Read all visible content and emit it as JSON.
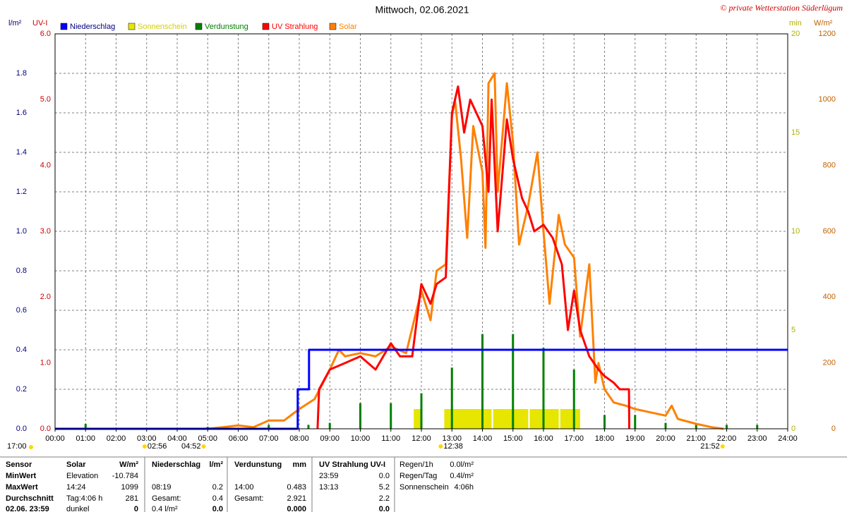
{
  "chart_data": {
    "type": "line",
    "title": "Mittwoch, 02.06.2021",
    "copyright": "© private Wetterstation Süderlügum",
    "grid": true,
    "xlim": [
      0,
      24
    ],
    "xticks": [
      {
        "value": 0,
        "label": "00:00"
      },
      {
        "value": 1,
        "label": "01:00"
      },
      {
        "value": 2,
        "label": "02:00"
      },
      {
        "value": 3,
        "label": "03:00"
      },
      {
        "value": 4,
        "label": "04:00"
      },
      {
        "value": 5,
        "label": "05:00"
      },
      {
        "value": 6,
        "label": "06:00"
      },
      {
        "value": 7,
        "label": "07:00"
      },
      {
        "value": 8,
        "label": "08:00"
      },
      {
        "value": 9,
        "label": "09:00"
      },
      {
        "value": 10,
        "label": "10:00"
      },
      {
        "value": 11,
        "label": "11:00"
      },
      {
        "value": 12,
        "label": "12:00"
      },
      {
        "value": 13,
        "label": "13:00"
      },
      {
        "value": 14,
        "label": "14:00"
      },
      {
        "value": 15,
        "label": "15:00"
      },
      {
        "value": 16,
        "label": "16:00"
      },
      {
        "value": 17,
        "label": "17:00"
      },
      {
        "value": 18,
        "label": "18:00"
      },
      {
        "value": 19,
        "label": "19:00"
      },
      {
        "value": 20,
        "label": "20:00"
      },
      {
        "value": 21,
        "label": "21:00"
      },
      {
        "value": 22,
        "label": "22:00"
      },
      {
        "value": 23,
        "label": "23:00"
      },
      {
        "value": 24,
        "label": "24:00"
      }
    ],
    "axes": [
      {
        "label": "l/m²",
        "color": "#000080",
        "lim": [
          0,
          2.0
        ],
        "ticks": [
          {
            "value": 0,
            "label": "0.0"
          },
          {
            "value": 0.2,
            "label": "0.2"
          },
          {
            "value": 0.4,
            "label": "0.4"
          },
          {
            "value": 0.6,
            "label": "0.6"
          },
          {
            "value": 0.8,
            "label": "0.8"
          },
          {
            "value": 1.0,
            "label": "1.0"
          },
          {
            "value": 1.2,
            "label": "1.2"
          },
          {
            "value": 1.4,
            "label": "1.4"
          },
          {
            "value": 1.6,
            "label": "1.6"
          },
          {
            "value": 1.8,
            "label": "1.8"
          }
        ]
      },
      {
        "label": "UV-I",
        "color": "#cc0000",
        "lim": [
          0,
          6.0
        ],
        "ticks": [
          {
            "value": 0,
            "label": "0.0"
          },
          {
            "value": 1,
            "label": "1.0"
          },
          {
            "value": 2,
            "label": "2.0"
          },
          {
            "value": 3,
            "label": "3.0"
          },
          {
            "value": 4,
            "label": "4.0"
          },
          {
            "value": 5,
            "label": "5.0"
          },
          {
            "value": 6,
            "label": "6.0"
          }
        ]
      },
      {
        "label": "min",
        "color": "#b0b000",
        "lim": [
          0,
          20
        ],
        "ticks": [
          0,
          5,
          10,
          15,
          20
        ]
      },
      {
        "label": "W/m²",
        "color": "#c06000",
        "lim": [
          0,
          1200
        ],
        "ticks": [
          0,
          200,
          400,
          600,
          800,
          1000,
          1200
        ]
      }
    ],
    "series": [
      {
        "name": "Niederschlag",
        "color": "#0000ff",
        "type": "step",
        "axis": 0,
        "x": [
          0,
          7.95,
          7.95,
          8.32,
          8.32,
          24
        ],
        "values": [
          0,
          0,
          0.2,
          0.2,
          0.4,
          0.4
        ]
      },
      {
        "name": "Sonnenschein",
        "color": "#e6e600",
        "type": "interval",
        "axis": 2,
        "x": [
          11.75,
          12.75,
          14.35,
          15.55,
          16.55
        ],
        "x_end": [
          12.0,
          14.3,
          15.5,
          16.5,
          17.2
        ],
        "values": [
          1,
          1,
          1,
          1,
          1
        ]
      },
      {
        "name": "Verdunstung",
        "color": "#008000",
        "type": "spike",
        "axis": 0,
        "x": [
          1,
          5,
          7,
          8.3,
          9,
          10,
          11,
          12,
          13,
          14,
          15,
          16,
          17,
          18,
          19,
          20,
          21,
          22,
          23
        ],
        "values": [
          0.025,
          0.01,
          0.02,
          0.02,
          0.03,
          0.13,
          0.13,
          0.18,
          0.31,
          0.48,
          0.48,
          0.41,
          0.3,
          0.07,
          0.07,
          0.03,
          0.02,
          0.02,
          0.02
        ]
      },
      {
        "name": "UV Strahlung",
        "color": "#ff0000",
        "type": "line",
        "axis": 1,
        "x": [
          8.6,
          8.65,
          9.0,
          9.5,
          10.0,
          10.5,
          11.0,
          11.3,
          11.7,
          12.0,
          12.3,
          12.5,
          12.8,
          13.0,
          13.2,
          13.4,
          13.6,
          14.0,
          14.2,
          14.3,
          14.5,
          14.8,
          15.0,
          15.3,
          15.5,
          15.7,
          16.0,
          16.3,
          16.6,
          16.8,
          17.0,
          17.2,
          17.5,
          17.8,
          18.0,
          18.3,
          18.5,
          18.8,
          18.81
        ],
        "values": [
          0,
          0.6,
          0.9,
          1.0,
          1.1,
          0.9,
          1.3,
          1.1,
          1.1,
          2.2,
          1.9,
          2.2,
          2.3,
          4.8,
          5.2,
          4.5,
          5.0,
          4.6,
          3.6,
          5.0,
          3.0,
          4.7,
          4.1,
          3.5,
          3.3,
          3.0,
          3.1,
          2.9,
          2.5,
          1.5,
          2.1,
          1.5,
          1.1,
          0.9,
          0.8,
          0.7,
          0.6,
          0.6,
          0
        ]
      },
      {
        "name": "Solar",
        "color": "#ff8000",
        "type": "line",
        "axis": 3,
        "x": [
          0,
          5.0,
          5.5,
          6.0,
          6.5,
          7.0,
          7.5,
          8.0,
          8.5,
          9.0,
          9.3,
          9.5,
          10.0,
          10.5,
          11.0,
          11.5,
          12.0,
          12.3,
          12.5,
          12.8,
          13.0,
          13.1,
          13.3,
          13.5,
          13.7,
          14.0,
          14.1,
          14.2,
          14.4,
          14.5,
          14.8,
          15.0,
          15.2,
          15.5,
          15.8,
          16.0,
          16.2,
          16.5,
          16.7,
          17.0,
          17.2,
          17.5,
          17.7,
          17.8,
          18.0,
          18.3,
          18.7,
          19.0,
          19.5,
          20.0,
          20.2,
          20.4,
          21.0,
          21.5,
          21.9
        ],
        "values": [
          0,
          0,
          5,
          10,
          5,
          25,
          25,
          60,
          90,
          180,
          240,
          220,
          230,
          220,
          250,
          230,
          420,
          330,
          480,
          500,
          950,
          1000,
          820,
          580,
          920,
          780,
          550,
          1050,
          1080,
          720,
          1050,
          870,
          560,
          680,
          840,
          600,
          380,
          650,
          560,
          520,
          280,
          500,
          140,
          200,
          120,
          80,
          70,
          60,
          50,
          40,
          70,
          30,
          15,
          5,
          0
        ]
      }
    ],
    "previous_sunset": "17:00",
    "sun_events": [
      {
        "x": 2.933,
        "label": "02:56"
      },
      {
        "x": 4.867,
        "label": "04:52"
      },
      {
        "x": 12.633,
        "label": "12:38"
      },
      {
        "x": 21.867,
        "label": "21:52"
      }
    ]
  },
  "table": {
    "rows": [
      [
        "Sensor",
        "Solar",
        "W/m²",
        "Niederschlag",
        "l/m²",
        "Verdunstung",
        "mm",
        "UV Strahlung UV-I",
        null
      ],
      [
        "MinWert",
        "Elevation",
        "-10.784",
        null,
        null,
        null,
        null,
        "23:59",
        "0.0"
      ],
      [
        "MaxWert",
        "14:24",
        "1099",
        "08:19",
        "0.2",
        "14:00",
        "0.483",
        "13:13",
        "5.2"
      ],
      [
        "Durchschnitt",
        "Tag:4:06 h",
        "281",
        "Gesamt:",
        "0.4",
        "Gesamt:",
        "2.921",
        null,
        "2.2"
      ],
      [
        "02.06. 23:59",
        "dunkel",
        "0",
        "0.4 l/m²",
        "0.0",
        null,
        "0.000",
        null,
        "0.0"
      ]
    ],
    "summary": [
      [
        "Regen/1h",
        "0.0l/m²"
      ],
      [
        "Regen/Tag",
        "0.4l/m²"
      ],
      [
        "Sonnenschein",
        "4:06h"
      ]
    ]
  }
}
